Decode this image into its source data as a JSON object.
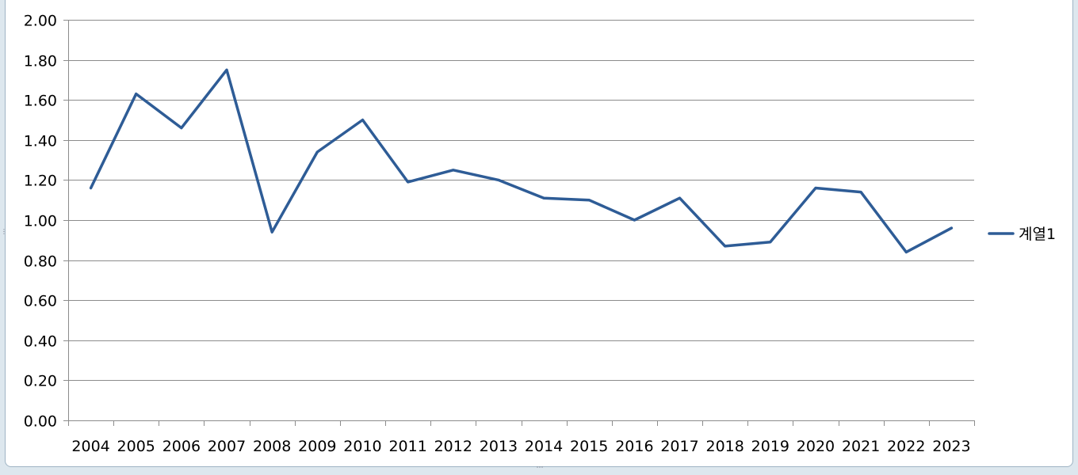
{
  "chart_data": {
    "type": "line",
    "categories": [
      "2004",
      "2005",
      "2006",
      "2007",
      "2008",
      "2009",
      "2010",
      "2011",
      "2012",
      "2013",
      "2014",
      "2015",
      "2016",
      "2017",
      "2018",
      "2019",
      "2020",
      "2021",
      "2022",
      "2023"
    ],
    "series": [
      {
        "name": "계열1",
        "values": [
          1.16,
          1.63,
          1.46,
          1.75,
          0.94,
          1.34,
          1.5,
          1.19,
          1.25,
          1.2,
          1.11,
          1.1,
          1.0,
          1.11,
          0.87,
          0.89,
          1.16,
          1.14,
          0.84,
          0.96
        ],
        "color": "#2e5c96"
      }
    ],
    "ylim": [
      0,
      2
    ],
    "yticks": [
      "0.00",
      "0.20",
      "0.40",
      "0.60",
      "0.80",
      "1.00",
      "1.20",
      "1.40",
      "1.60",
      "1.80",
      "2.00"
    ],
    "grid": true,
    "legend": "right",
    "title": "",
    "xlabel": "",
    "ylabel": ""
  },
  "colors": {
    "gridline": "#8c8c8c",
    "axis": "#8c8c8c",
    "series": "#2e5c96"
  }
}
